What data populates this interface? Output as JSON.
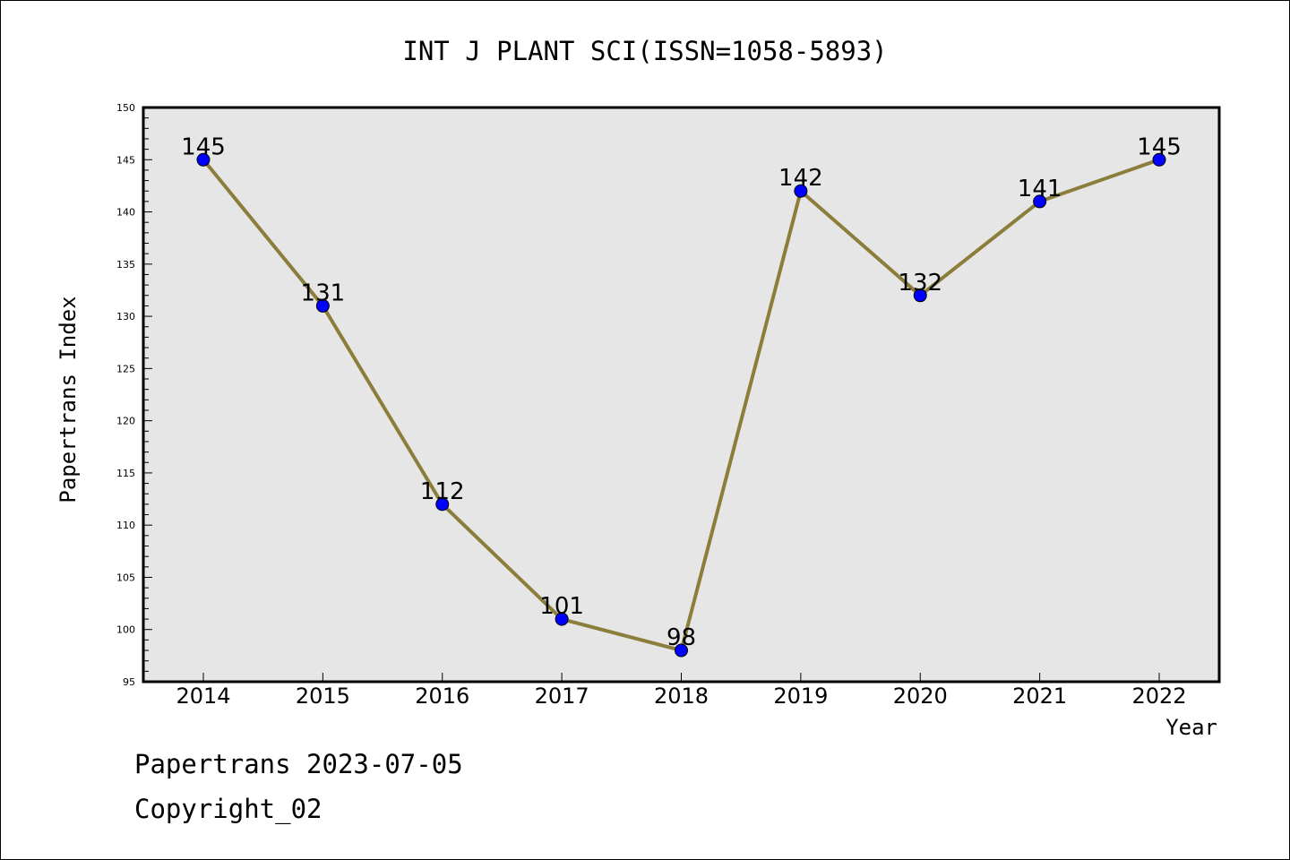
{
  "chart_data": {
    "type": "line",
    "title": "INT J PLANT SCI(ISSN=1058-5893)",
    "xlabel": "Year",
    "ylabel": "Papertrans Index",
    "categories": [
      "2014",
      "2015",
      "2016",
      "2017",
      "2018",
      "2019",
      "2020",
      "2021",
      "2022"
    ],
    "series": [
      {
        "values": [
          145,
          131,
          112,
          101,
          98,
          142,
          132,
          141,
          145
        ]
      }
    ],
    "data_labels": [
      "145",
      "131",
      "112",
      "101",
      "98",
      "142",
      "132",
      "141",
      "145"
    ],
    "ylim": [
      95,
      150
    ],
    "yticks": [
      95,
      100,
      105,
      110,
      115,
      120,
      125,
      130,
      135,
      140,
      145,
      150
    ],
    "grid": false,
    "line_color": "#8b7d3a",
    "marker_color": "#0000ff",
    "plot_background": "#e6e6e6"
  },
  "footer": {
    "line1": "Papertrans 2023-07-05",
    "line2": "Copyright_02"
  }
}
